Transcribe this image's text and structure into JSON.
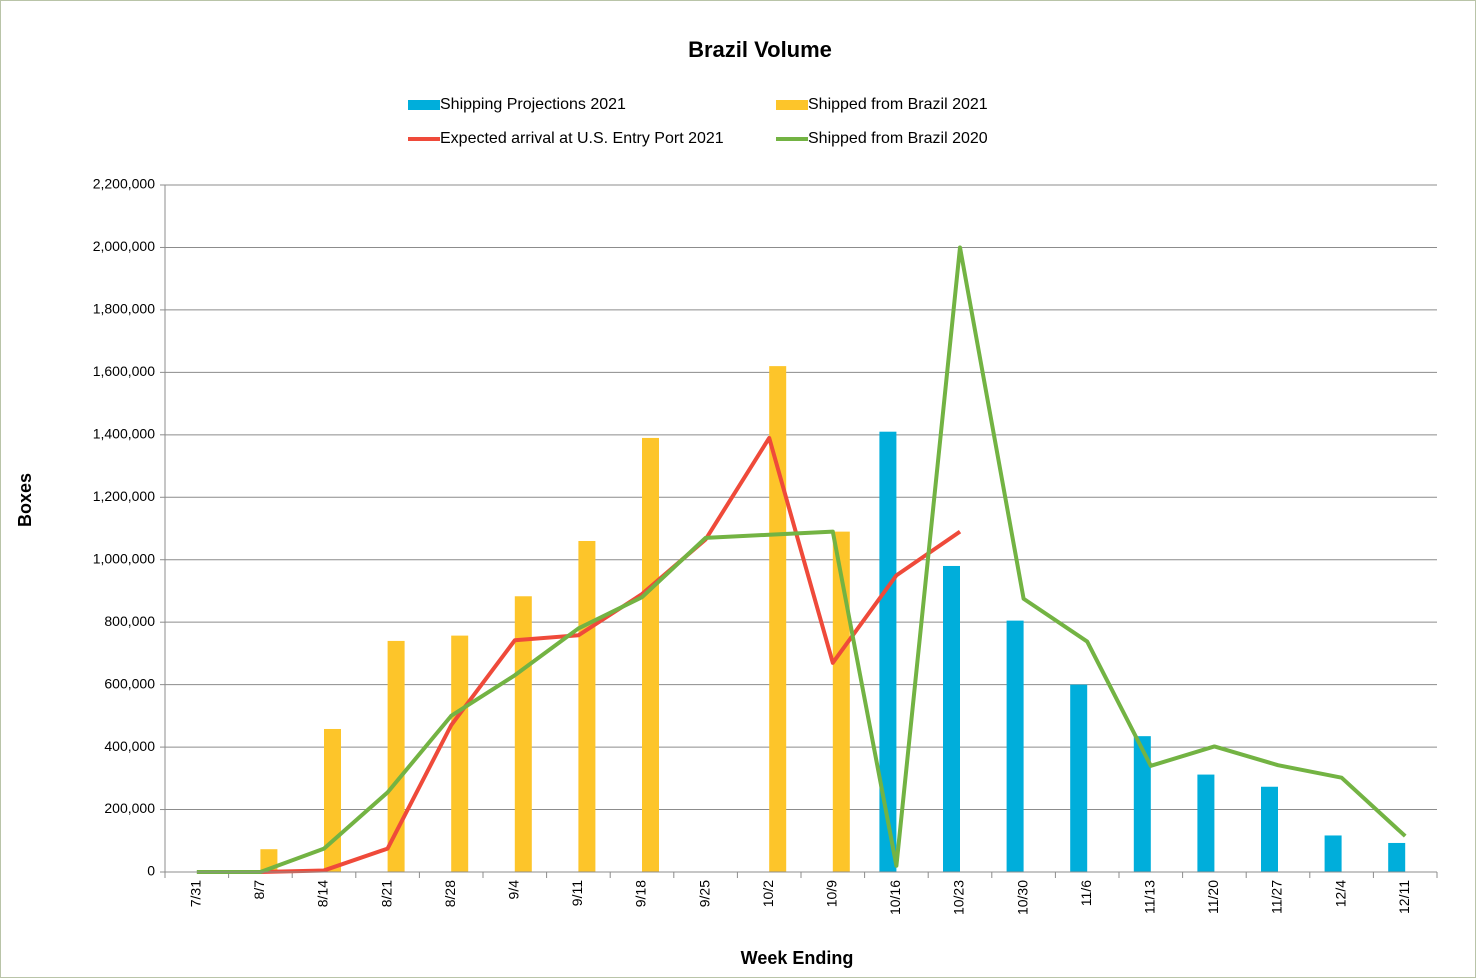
{
  "chart_data": {
    "type": "bar_line",
    "title": "Brazil Volume",
    "x_label": "Week Ending",
    "y_label": "Boxes",
    "categories": [
      "7/31",
      "8/7",
      "8/14",
      "8/21",
      "8/28",
      "9/4",
      "9/11",
      "9/18",
      "9/25",
      "10/2",
      "10/9",
      "10/16",
      "10/23",
      "10/30",
      "11/6",
      "11/13",
      "11/20",
      "11/27",
      "12/4",
      "12/11"
    ],
    "series": [
      {
        "name": "Shipping Projections 2021",
        "kind": "bar",
        "color": "#00aedb",
        "values": [
          null,
          null,
          null,
          null,
          null,
          null,
          null,
          null,
          null,
          null,
          null,
          1410000,
          980000,
          805000,
          600000,
          435000,
          312000,
          273000,
          117000,
          93000
        ]
      },
      {
        "name": "Shipped from Brazil 2021",
        "kind": "bar",
        "color": "#fdc52a",
        "values": [
          null,
          73000,
          458000,
          740000,
          757000,
          883000,
          1060000,
          1390000,
          null,
          1620000,
          1090000,
          null,
          null,
          null,
          null,
          null,
          null,
          null,
          null,
          null
        ]
      },
      {
        "name": "Expected arrival at U.S. Entry Port 2021",
        "kind": "line",
        "color": "#ef4a3a",
        "values": [
          null,
          0,
          5000,
          75000,
          470000,
          742000,
          758000,
          890000,
          1065000,
          1390000,
          670000,
          950000,
          1090000,
          null,
          null,
          null,
          null,
          null,
          null,
          null
        ]
      },
      {
        "name": "Shipped from Brazil 2020",
        "kind": "line",
        "color": "#73b343",
        "values": [
          0,
          0,
          75000,
          255000,
          500000,
          630000,
          780000,
          880000,
          1070000,
          1080000,
          1090000,
          20000,
          2000000,
          875000,
          738000,
          340000,
          402000,
          342000,
          302000,
          115000
        ]
      }
    ],
    "ylim": [
      0,
      2200000
    ],
    "yticks": [
      0,
      {
        "value": 200000,
        "label": "200,000"
      },
      {
        "value": 400000,
        "label": "400,000"
      },
      {
        "value": 600000,
        "label": "600,000"
      },
      {
        "value": 800000,
        "label": "800,000"
      },
      {
        "value": 1000000,
        "label": "1,000,000"
      },
      {
        "value": 1200000,
        "label": "1,200,000"
      },
      {
        "value": 1400000,
        "label": "1,400,000"
      },
      {
        "value": 1600000,
        "label": "1,600,000"
      },
      {
        "value": 1800000,
        "label": "1,800,000"
      },
      {
        "value": 2000000,
        "label": "2,000,000"
      },
      {
        "value": 2200000,
        "label": "2,200,000"
      }
    ],
    "grid": true
  }
}
